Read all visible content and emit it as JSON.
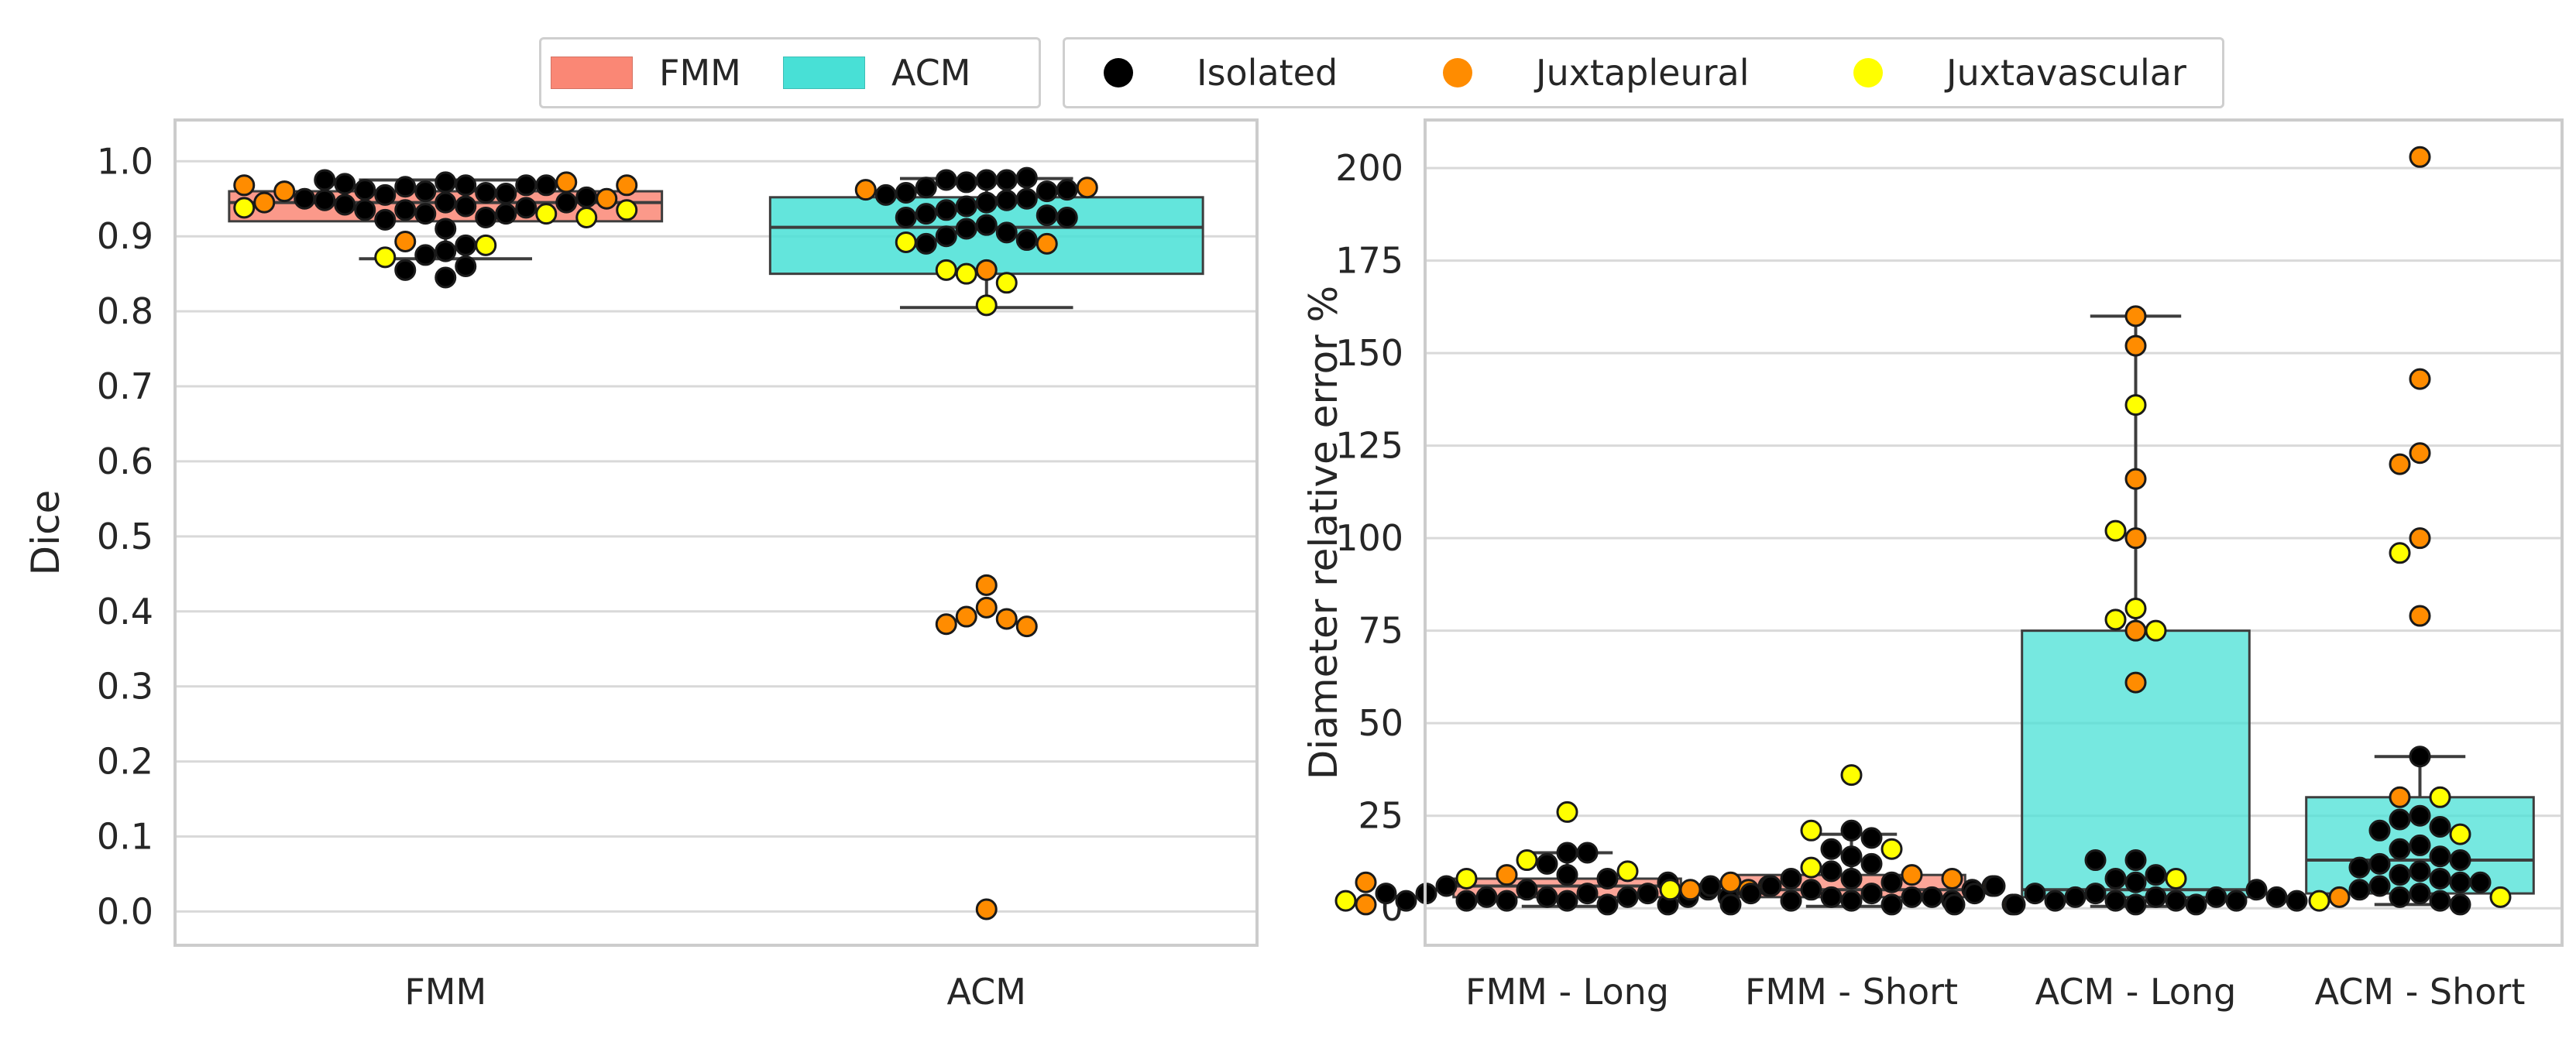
{
  "legend": {
    "methods": [
      {
        "label": "FMM",
        "color": "#fa8775"
      },
      {
        "label": "ACM",
        "color": "#48e0d6"
      }
    ],
    "nodule_types": [
      {
        "label": "Isolated",
        "color": "#000000"
      },
      {
        "label": "Juxtapleural",
        "color": "#ff8c00"
      },
      {
        "label": "Juxtavascular",
        "color": "#ffff00"
      }
    ]
  },
  "chart_data": [
    {
      "type": "box-swarm",
      "ylabel": "Dice",
      "xlabel": "",
      "categories": [
        "FMM",
        "ACM"
      ],
      "ylim": [
        -0.045,
        1.055
      ],
      "yticks": [
        0.0,
        0.1,
        0.2,
        0.3,
        0.4,
        0.5,
        0.6,
        0.7,
        0.8,
        0.9,
        1.0
      ],
      "ytick_labels": [
        "0.0",
        "0.1",
        "0.2",
        "0.3",
        "0.4",
        "0.5",
        "0.6",
        "0.7",
        "0.8",
        "0.9",
        "1.0"
      ],
      "grid": true,
      "boxes": [
        {
          "category": "FMM",
          "color": "#fa8775",
          "q1": 0.92,
          "median": 0.945,
          "q3": 0.96,
          "whisker_low": 0.87,
          "whisker_high": 0.975
        },
        {
          "category": "ACM",
          "color": "#48e0d6",
          "q1": 0.85,
          "median": 0.912,
          "q3": 0.952,
          "whisker_low": 0.805,
          "whisker_high": 0.977
        }
      ],
      "points": [
        {
          "category": "FMM",
          "type": "Isolated",
          "values": [
            0.972,
            0.96,
            0.968,
            0.966,
            0.958,
            0.955,
            0.957,
            0.962,
            0.968,
            0.97,
            0.968,
            0.975,
            0.945,
            0.942,
            0.948,
            0.94,
            0.935,
            0.938,
            0.945,
            0.95,
            0.93,
            0.925,
            0.922,
            0.93,
            0.935,
            0.952,
            0.91,
            0.88,
            0.875,
            0.888,
            0.86,
            0.855,
            0.845
          ]
        },
        {
          "category": "FMM",
          "type": "Juxtapleural",
          "values": [
            0.96,
            0.95,
            0.945,
            0.972,
            0.968,
            0.968,
            0.893
          ]
        },
        {
          "category": "FMM",
          "type": "Juxtavascular",
          "values": [
            0.93,
            0.925,
            0.935,
            0.938,
            0.888,
            0.872
          ]
        },
        {
          "category": "ACM",
          "type": "Isolated",
          "values": [
            0.975,
            0.972,
            0.975,
            0.975,
            0.978,
            0.965,
            0.96,
            0.958,
            0.962,
            0.955,
            0.95,
            0.945,
            0.948,
            0.94,
            0.935,
            0.93,
            0.928,
            0.925,
            0.925,
            0.915,
            0.91,
            0.905,
            0.9,
            0.895,
            0.89
          ]
        },
        {
          "category": "ACM",
          "type": "Juxtapleural",
          "values": [
            0.965,
            0.962,
            0.89,
            0.855,
            0.435,
            0.405,
            0.393,
            0.39,
            0.383,
            0.38,
            0.003
          ]
        },
        {
          "category": "ACM",
          "type": "Juxtavascular",
          "values": [
            0.892,
            0.85,
            0.838,
            0.855,
            0.808
          ]
        }
      ]
    },
    {
      "type": "box-swarm",
      "ylabel": "Diameter relative error %",
      "xlabel": "",
      "categories": [
        "FMM - Long",
        "FMM - Short",
        "ACM - Long",
        "ACM - Short"
      ],
      "ylim": [
        -10,
        213
      ],
      "yticks": [
        0,
        25,
        50,
        75,
        100,
        125,
        150,
        175,
        200
      ],
      "ytick_labels": [
        "0",
        "25",
        "50",
        "75",
        "100",
        "125",
        "150",
        "175",
        "200"
      ],
      "grid": true,
      "boxes": [
        {
          "category": "FMM - Long",
          "color": "#fa8775",
          "q1": 3,
          "median": 6,
          "q3": 8,
          "whisker_low": 0.5,
          "whisker_high": 15
        },
        {
          "category": "FMM - Short",
          "color": "#fa8775",
          "q1": 3,
          "median": 5,
          "q3": 9,
          "whisker_low": 0.5,
          "whisker_high": 20
        },
        {
          "category": "ACM - Long",
          "color": "#48e0d6",
          "q1": 3,
          "median": 5,
          "q3": 75,
          "whisker_low": 0.5,
          "whisker_high": 160
        },
        {
          "category": "ACM - Short",
          "color": "#48e0d6",
          "q1": 4,
          "median": 13,
          "q3": 30,
          "whisker_low": 1,
          "whisker_high": 41
        }
      ],
      "points": [
        {
          "category": "FMM - Long",
          "type": "Isolated",
          "values": [
            2,
            3,
            4,
            5,
            1,
            2,
            3,
            3,
            4,
            2,
            1,
            9,
            8,
            7,
            15,
            12,
            15,
            6,
            3,
            4,
            5,
            2,
            3,
            4
          ]
        },
        {
          "category": "FMM - Long",
          "type": "Juxtapleural",
          "values": [
            9,
            5,
            7,
            6,
            1
          ]
        },
        {
          "category": "FMM - Long",
          "type": "Juxtavascular",
          "values": [
            26,
            13,
            10,
            8,
            2
          ]
        },
        {
          "category": "FMM - Short",
          "type": "Isolated",
          "values": [
            2,
            3,
            4,
            5,
            1,
            2,
            3,
            6,
            7,
            8,
            10,
            12,
            14,
            16,
            21,
            19,
            3,
            4,
            2,
            1,
            5,
            6,
            8
          ]
        },
        {
          "category": "FMM - Short",
          "type": "Juxtapleural",
          "values": [
            9,
            6,
            7,
            8,
            5,
            1
          ]
        },
        {
          "category": "FMM - Short",
          "type": "Juxtavascular",
          "values": [
            36,
            21,
            16,
            11,
            5
          ]
        },
        {
          "category": "ACM - Long",
          "type": "Isolated",
          "values": [
            1,
            2,
            3,
            4,
            2,
            3,
            1,
            2,
            3,
            4,
            2,
            1,
            5,
            6,
            7,
            8,
            9,
            13,
            13,
            3,
            4,
            2,
            1
          ]
        },
        {
          "category": "ACM - Long",
          "type": "Juxtapleural",
          "values": [
            160,
            152,
            116,
            100,
            75,
            61
          ]
        },
        {
          "category": "ACM - Long",
          "type": "Juxtavascular",
          "values": [
            136,
            102,
            81,
            78,
            75,
            8
          ]
        },
        {
          "category": "ACM - Short",
          "type": "Isolated",
          "values": [
            41,
            25,
            24,
            22,
            21,
            17,
            16,
            14,
            12,
            10,
            9,
            8,
            7,
            6,
            5,
            4,
            3,
            2,
            1,
            13,
            11,
            7
          ]
        },
        {
          "category": "ACM - Short",
          "type": "Juxtapleural",
          "values": [
            203,
            143,
            123,
            120,
            100,
            79,
            30,
            3
          ]
        },
        {
          "category": "ACM - Short",
          "type": "Juxtavascular",
          "values": [
            96,
            30,
            20,
            3,
            2
          ]
        }
      ]
    }
  ]
}
